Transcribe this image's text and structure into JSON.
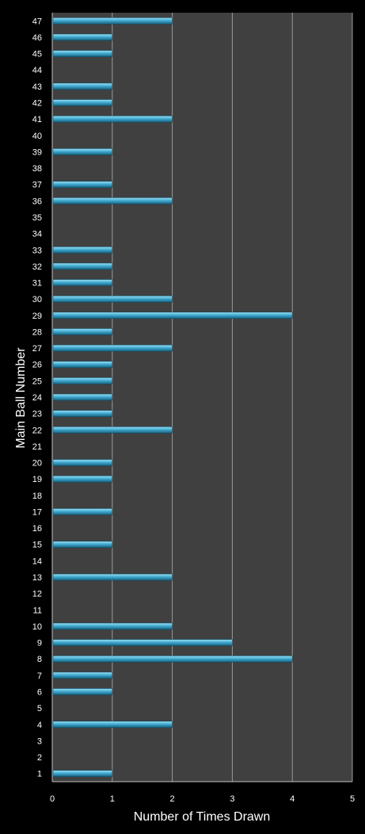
{
  "colors": {
    "background": "#000000",
    "plot_area": "#404040",
    "gridline": "#9a9a9a",
    "bar_light": "#8fd6ee",
    "bar_mid": "#3fa9cf",
    "bar_dark": "#1b6c8a",
    "text": "#ffffff"
  },
  "chart_data": {
    "type": "bar",
    "orientation": "horizontal",
    "xlabel": "Number of Times Drawn",
    "ylabel": "Main Ball Number",
    "xlim": [
      0,
      5
    ],
    "xticks": [
      0,
      1,
      2,
      3,
      4,
      5
    ],
    "grid": true,
    "legend": "none",
    "categories": [
      "1",
      "2",
      "3",
      "4",
      "5",
      "6",
      "7",
      "8",
      "9",
      "10",
      "11",
      "12",
      "13",
      "14",
      "15",
      "16",
      "17",
      "18",
      "19",
      "20",
      "21",
      "22",
      "23",
      "24",
      "25",
      "26",
      "27",
      "28",
      "29",
      "30",
      "31",
      "32",
      "33",
      "34",
      "35",
      "36",
      "37",
      "38",
      "39",
      "40",
      "41",
      "42",
      "43",
      "44",
      "45",
      "46",
      "47"
    ],
    "values": [
      1,
      0,
      0,
      2,
      0,
      1,
      1,
      4,
      3,
      2,
      0,
      0,
      2,
      0,
      1,
      0,
      1,
      0,
      1,
      1,
      0,
      2,
      1,
      1,
      1,
      1,
      2,
      1,
      4,
      2,
      1,
      1,
      1,
      0,
      0,
      2,
      1,
      0,
      1,
      0,
      2,
      1,
      1,
      0,
      1,
      1,
      2
    ]
  }
}
